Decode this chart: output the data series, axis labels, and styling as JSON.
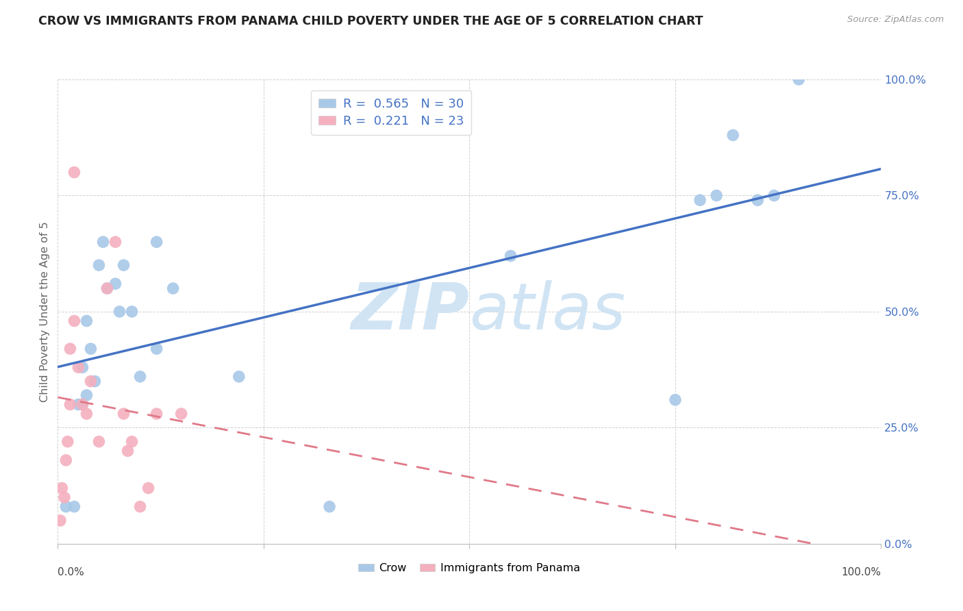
{
  "title": "CROW VS IMMIGRANTS FROM PANAMA CHILD POVERTY UNDER THE AGE OF 5 CORRELATION CHART",
  "source": "Source: ZipAtlas.com",
  "ylabel": "Child Poverty Under the Age of 5",
  "ytick_labels": [
    "100.0%",
    "75.0%",
    "50.0%",
    "25.0%",
    "0.0%"
  ],
  "ytick_values": [
    100,
    75,
    50,
    25,
    0
  ],
  "xlim": [
    0,
    100
  ],
  "ylim": [
    0,
    100
  ],
  "crow_R": "0.565",
  "crow_N": "30",
  "panama_R": "0.221",
  "panama_N": "23",
  "crow_color": "#a8c8e8",
  "panama_color": "#f4b0be",
  "crow_line_color": "#4472C4",
  "panama_line_color": "#e07888",
  "watermark_color": "#d0e4f4",
  "crow_scatter_x": [
    1.0,
    2.0,
    2.5,
    3.0,
    3.5,
    4.0,
    5.0,
    5.5,
    6.0,
    7.0,
    8.0,
    9.0,
    10.0,
    12.0,
    14.0,
    22.0,
    33.0,
    55.0,
    75.0,
    78.0,
    80.0,
    82.0,
    85.0,
    87.0,
    3.0,
    3.5,
    4.5,
    7.5,
    12.0,
    90.0
  ],
  "crow_scatter_y": [
    8.0,
    8.0,
    30.0,
    38.0,
    32.0,
    42.0,
    60.0,
    65.0,
    55.0,
    56.0,
    60.0,
    50.0,
    36.0,
    42.0,
    55.0,
    36.0,
    8.0,
    62.0,
    31.0,
    74.0,
    75.0,
    88.0,
    74.0,
    75.0,
    30.0,
    48.0,
    35.0,
    50.0,
    65.0,
    100.0
  ],
  "panama_scatter_x": [
    0.3,
    0.5,
    0.8,
    1.0,
    1.2,
    1.5,
    1.5,
    2.0,
    2.5,
    3.0,
    3.5,
    4.0,
    5.0,
    6.0,
    7.0,
    8.0,
    8.5,
    9.0,
    10.0,
    11.0,
    12.0,
    15.0,
    2.0
  ],
  "panama_scatter_y": [
    5.0,
    12.0,
    10.0,
    18.0,
    22.0,
    30.0,
    42.0,
    48.0,
    38.0,
    30.0,
    28.0,
    35.0,
    22.0,
    55.0,
    65.0,
    28.0,
    20.0,
    22.0,
    8.0,
    12.0,
    28.0,
    28.0,
    80.0
  ],
  "bottom_labels": [
    "Crow",
    "Immigrants from Panama"
  ]
}
